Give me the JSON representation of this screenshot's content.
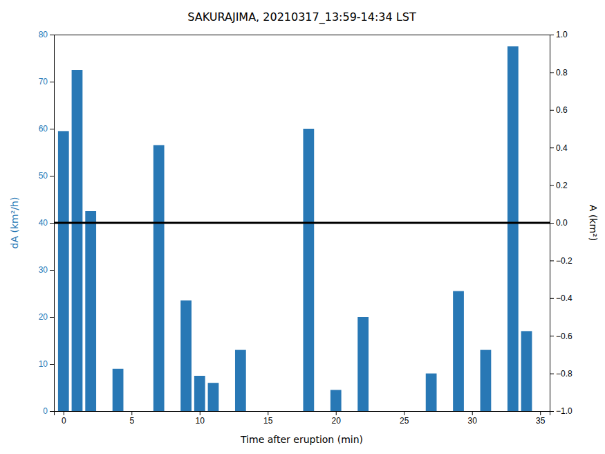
{
  "chart_data": {
    "type": "bar",
    "title": "SAKURAJIMA, 20210317_13:59-14:34 LST",
    "xlabel": "Time after eruption (min)",
    "ylabel": "dA (km²/h)",
    "y2label": "A (km²)",
    "x": [
      0,
      1,
      2,
      4,
      7,
      9,
      10,
      11,
      13,
      18,
      20,
      22,
      27,
      29,
      31,
      33,
      34
    ],
    "values": [
      59.5,
      72.5,
      42.5,
      9.0,
      56.5,
      23.5,
      7.5,
      6.0,
      13.0,
      60.0,
      4.5,
      20.0,
      8.0,
      25.5,
      13.0,
      77.5,
      17.0
    ],
    "color": "#2878b5",
    "xlim": [
      -0.7,
      35.7
    ],
    "xticks": [
      0,
      5,
      10,
      15,
      20,
      25,
      30,
      35
    ],
    "ylim": [
      0,
      80
    ],
    "yticks": [
      0,
      10,
      20,
      30,
      40,
      50,
      60,
      70,
      80
    ],
    "y2lim": [
      -1,
      1
    ],
    "y2ticks": [
      {
        "value": -1.0,
        "label": "−1.0"
      },
      {
        "value": -0.8,
        "label": "−0.8"
      },
      {
        "value": -0.6,
        "label": "−0.6"
      },
      {
        "value": -0.4,
        "label": "−0.4"
      },
      {
        "value": -0.2,
        "label": "−0.2"
      },
      {
        "value": 0.0,
        "label": "0.0"
      },
      {
        "value": 0.2,
        "label": "0.2"
      },
      {
        "value": 0.4,
        "label": "0.4"
      },
      {
        "value": 0.6,
        "label": "0.6"
      },
      {
        "value": 0.8,
        "label": "0.8"
      },
      {
        "value": 1.0,
        "label": "1.0"
      }
    ],
    "reference_line": {
      "y": 40,
      "color": "black"
    },
    "grid": false
  }
}
